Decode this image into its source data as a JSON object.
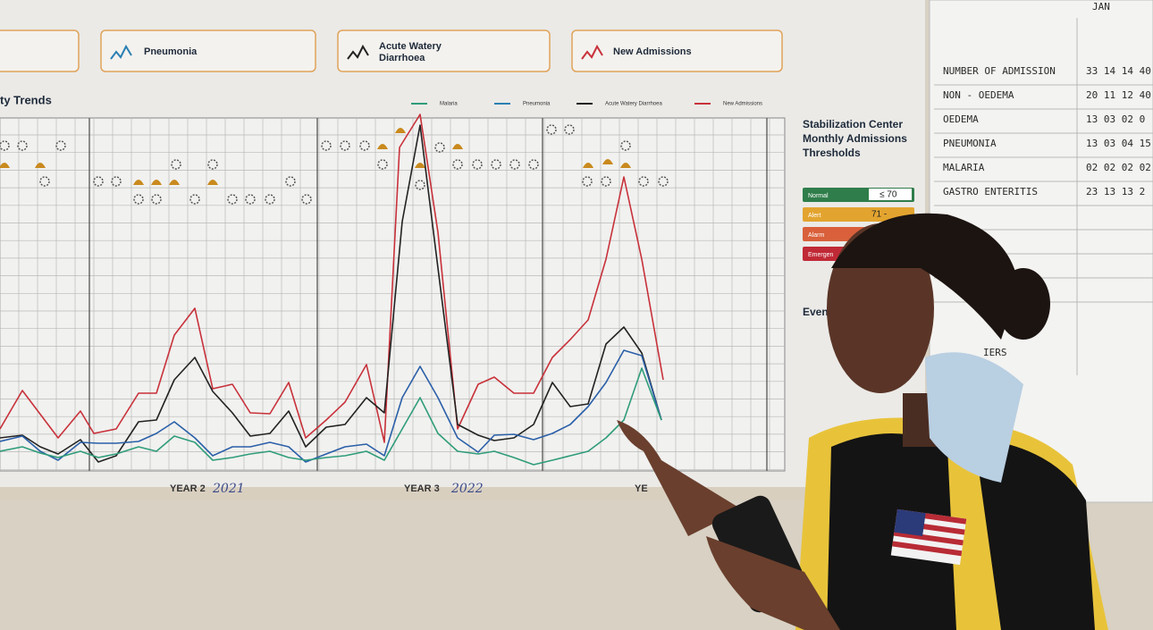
{
  "header_cards": [
    "Pneumonia",
    "Acute Watery Diarrhoea",
    "New Admissions"
  ],
  "chart": {
    "title": "ty Trends",
    "legend": [
      "Malaria",
      "Pneumonia",
      "Acute Watery Diarrhoea",
      "New Admissions"
    ],
    "years": [
      {
        "label": "YEAR 2",
        "note": "2021"
      },
      {
        "label": "YEAR 3",
        "note": "2022"
      },
      {
        "label": "YE"
      }
    ]
  },
  "thresholds": {
    "title": "Stabilization Center Monthly Admissions Thresholds",
    "rows": [
      {
        "label": "Normal",
        "value": "≤ 70"
      },
      {
        "label": "Alert",
        "value": "71 -"
      },
      {
        "label": "Alarm"
      },
      {
        "label": "Emergen"
      }
    ],
    "events_title": "Even"
  },
  "whiteboard": {
    "month": "JAN",
    "rows": [
      {
        "label": "NUMBER OF ADMISSION",
        "values": "33 14 14 40"
      },
      {
        "label": "NON - OEDEMA",
        "values": "20 11 12 40"
      },
      {
        "label": "OEDEMA",
        "values": "13 03 02 0"
      },
      {
        "label": "PNEUMONIA",
        "values": "13 03 04 15"
      },
      {
        "label": "MALARIA",
        "values": "02 02 02 02"
      },
      {
        "label": "GASTRO ENTERITIS",
        "values": "23 13 13 2"
      }
    ],
    "footer": "IERS"
  }
}
